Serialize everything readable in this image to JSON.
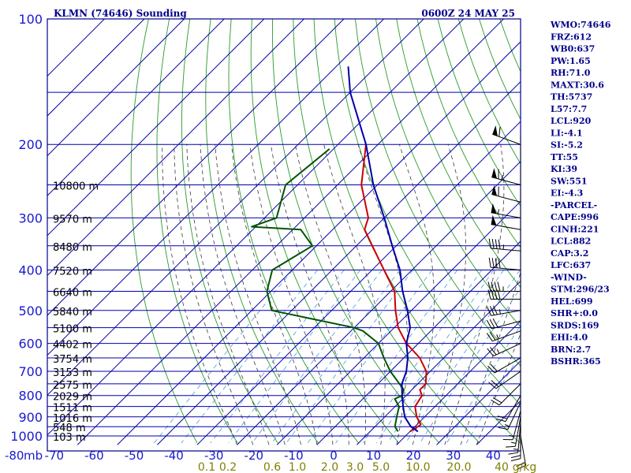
{
  "chart_data": {
    "type": "line",
    "title": "KLMN (74646) Sounding",
    "time": "0600Z 24 MAY 25",
    "pressure_ticks": [
      100,
      200,
      300,
      400,
      500,
      600,
      700,
      800,
      900,
      1000
    ],
    "pressure_unit": "mb",
    "temp_ticks": [
      -80,
      -70,
      -60,
      -50,
      -40,
      -30,
      -20,
      -10,
      0,
      10,
      20,
      30,
      40
    ],
    "height_labels": [
      {
        "p": 250,
        "label": "10800 m"
      },
      {
        "p": 300,
        "label": "9570 m"
      },
      {
        "p": 350,
        "label": "8480 m"
      },
      {
        "p": 400,
        "label": "7520 m"
      },
      {
        "p": 450,
        "label": "6640 m"
      },
      {
        "p": 500,
        "label": "5840 m"
      },
      {
        "p": 550,
        "label": "5100 m"
      },
      {
        "p": 600,
        "label": "4402 m"
      },
      {
        "p": 650,
        "label": "3754 m"
      },
      {
        "p": 700,
        "label": "3153 m"
      },
      {
        "p": 750,
        "label": "2575 m"
      },
      {
        "p": 800,
        "label": "2029 m"
      },
      {
        "p": 850,
        "label": "1511 m"
      },
      {
        "p": 900,
        "label": "1016 m"
      },
      {
        "p": 950,
        "label": "548 m"
      },
      {
        "p": 1000,
        "label": "103 m"
      }
    ],
    "mixing_ratio_labels": [
      "0.1",
      "0.2",
      "0.6",
      "1.0",
      "2.0",
      "3.0",
      "5.0",
      "10.0",
      "20.0",
      "40",
      "g/kg"
    ],
    "series": [
      {
        "name": "",
        "color": "#cc0000",
        "points": [
          [
            976,
            20
          ],
          [
            940,
            21
          ],
          [
            900,
            18
          ],
          [
            850,
            15
          ],
          [
            800,
            14
          ],
          [
            775,
            12
          ],
          [
            750,
            12
          ],
          [
            700,
            9
          ],
          [
            650,
            4
          ],
          [
            600,
            -3
          ],
          [
            550,
            -9
          ],
          [
            500,
            -14
          ],
          [
            450,
            -19
          ],
          [
            400,
            -27
          ],
          [
            350,
            -36
          ],
          [
            320,
            -42
          ],
          [
            310,
            -43
          ],
          [
            300,
            -44
          ],
          [
            250,
            -54
          ],
          [
            200,
            -63
          ]
        ]
      },
      {
        "name": "",
        "color": "#005500",
        "points": [
          [
            976,
            17
          ],
          [
            950,
            15
          ],
          [
            900,
            13
          ],
          [
            850,
            11
          ],
          [
            815,
            8
          ],
          [
            800,
            9
          ],
          [
            775,
            8
          ],
          [
            700,
            0
          ],
          [
            650,
            -5
          ],
          [
            600,
            -10
          ],
          [
            560,
            -17
          ],
          [
            550,
            -20
          ],
          [
            500,
            -45
          ],
          [
            450,
            -51
          ],
          [
            400,
            -55
          ],
          [
            350,
            -51
          ],
          [
            320,
            -58
          ],
          [
            315,
            -71
          ],
          [
            300,
            -67
          ],
          [
            250,
            -73
          ],
          [
            205,
            -71
          ]
        ]
      },
      {
        "name": "",
        "color": "#0000aa",
        "points": [
          [
            976,
            22
          ],
          [
            950,
            19
          ],
          [
            900,
            15
          ],
          [
            850,
            12
          ],
          [
            800,
            9
          ],
          [
            750,
            6
          ],
          [
            700,
            4
          ],
          [
            650,
            1
          ],
          [
            600,
            -3
          ],
          [
            550,
            -6
          ],
          [
            500,
            -11
          ],
          [
            450,
            -17
          ],
          [
            400,
            -23
          ],
          [
            350,
            -31
          ],
          [
            300,
            -40
          ],
          [
            250,
            -51
          ],
          [
            200,
            -63
          ],
          [
            150,
            -80
          ],
          [
            130,
            -87
          ]
        ]
      }
    ],
    "wind_barbs": [
      {
        "p": 200,
        "dir": 290,
        "spd": 60
      },
      {
        "p": 250,
        "dir": 285,
        "spd": 65
      },
      {
        "p": 275,
        "dir": 285,
        "spd": 60
      },
      {
        "p": 300,
        "dir": 280,
        "spd": 55
      },
      {
        "p": 320,
        "dir": 280,
        "spd": 50
      },
      {
        "p": 360,
        "dir": 275,
        "spd": 45
      },
      {
        "p": 400,
        "dir": 275,
        "spd": 40
      },
      {
        "p": 450,
        "dir": 270,
        "spd": 45
      },
      {
        "p": 470,
        "dir": 270,
        "spd": 40
      },
      {
        "p": 500,
        "dir": 260,
        "spd": 35
      },
      {
        "p": 530,
        "dir": 255,
        "spd": 30
      },
      {
        "p": 560,
        "dir": 250,
        "spd": 25
      },
      {
        "p": 600,
        "dir": 245,
        "spd": 25
      },
      {
        "p": 650,
        "dir": 240,
        "spd": 20
      },
      {
        "p": 700,
        "dir": 235,
        "spd": 20
      },
      {
        "p": 750,
        "dir": 225,
        "spd": 20
      },
      {
        "p": 800,
        "dir": 210,
        "spd": 20
      },
      {
        "p": 830,
        "dir": 205,
        "spd": 15
      },
      {
        "p": 870,
        "dir": 195,
        "spd": 15
      },
      {
        "p": 900,
        "dir": 190,
        "spd": 15
      },
      {
        "p": 930,
        "dir": 185,
        "spd": 15
      },
      {
        "p": 960,
        "dir": 180,
        "spd": 20
      },
      {
        "p": 1000,
        "dir": 170,
        "spd": 20
      }
    ],
    "xlim": [
      -80,
      40
    ],
    "ylim": [
      100,
      1050
    ]
  },
  "indices": [
    "WMO:74646",
    "FRZ:612",
    "WB0:637",
    "PW:1.65",
    "RH:71.0",
    "MAXT:30.6",
    "TH:5737",
    "L57:7.7",
    "LCL:920",
    "LI:-4.1",
    "SI:-5.2",
    "TT:55",
    "KI:39",
    "SW:551",
    "EI:-4.3",
    "-PARCEL-",
    "CAPE:996",
    "CINH:221",
    "LCL:882",
    "CAP:3.2",
    "LFC:637",
    "-WIND-",
    "STM:296/23",
    "HEL:699",
    "SHR+:0.0",
    "SRDS:169",
    "EHI:4.0",
    "BRN:2.7",
    "BSHR:365"
  ],
  "colors": {
    "frame": "#00008b",
    "isobar": "#0000aa",
    "isotherm": "#0000aa",
    "dry_adiabat": "#2a9a2a",
    "moist_adiabat": "#3a3a3a",
    "mixing_ratio": "#4a9ad8",
    "temperature": "#cc0000",
    "dewpoint": "#005500",
    "parcel": "#0000aa",
    "wind": "#000000"
  }
}
